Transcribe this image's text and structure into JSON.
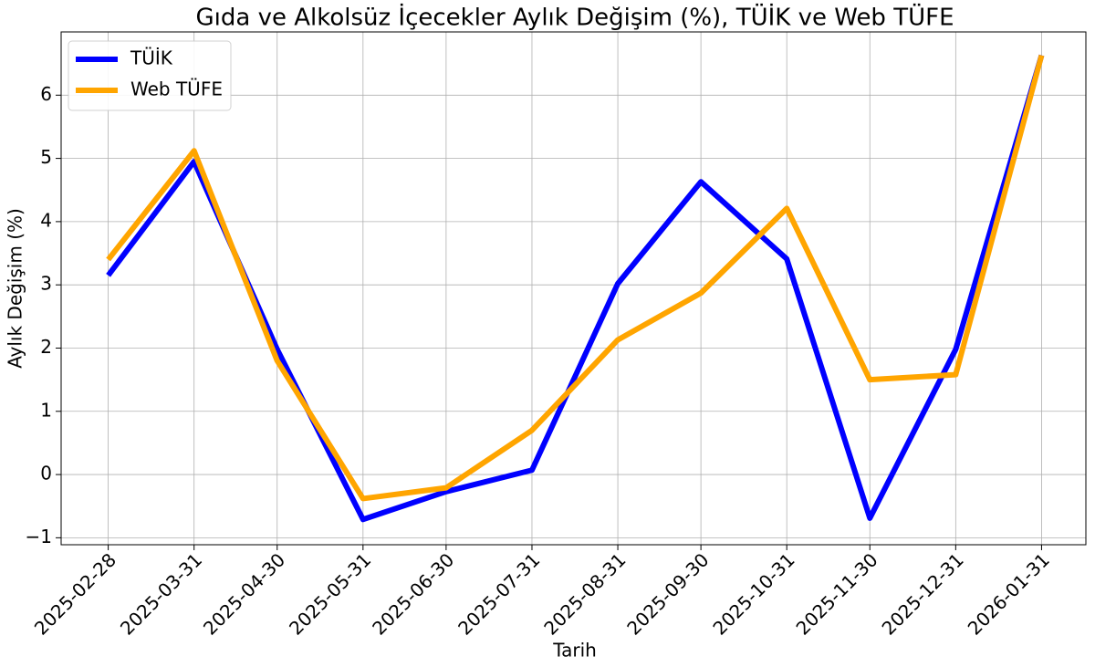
{
  "chart_data": {
    "type": "line",
    "title": "Gıda ve Alkolsüz İçecekler Aylık Değişim (%), TÜİK ve Web TÜFE",
    "xlabel": "Tarih",
    "ylabel": "Aylık Değişim (%)",
    "x": [
      "2025-02-28",
      "2025-03-31",
      "2025-04-30",
      "2025-05-31",
      "2025-06-30",
      "2025-07-31",
      "2025-08-31",
      "2025-09-30",
      "2025-10-31",
      "2025-11-30",
      "2025-12-31",
      "2026-01-31"
    ],
    "xticks": [
      "2025-02-28",
      "2025-03-31",
      "2025-04-30",
      "2025-05-31",
      "2025-06-30",
      "2025-07-31",
      "2025-08-31",
      "2025-09-30",
      "2025-10-31",
      "2025-11-30",
      "2025-12-31",
      "2026-01-31"
    ],
    "xlim": [
      "2025-02-11",
      "2026-02-16"
    ],
    "series": [
      {
        "name": "TÜİK",
        "color": "#0000ff",
        "values": [
          3.15,
          4.95,
          1.98,
          -0.71,
          -0.27,
          0.07,
          3.02,
          4.63,
          3.41,
          -0.69,
          1.98,
          6.63
        ]
      },
      {
        "name": "Web TÜFE",
        "color": "#ffa500",
        "values": [
          3.4,
          5.12,
          1.8,
          -0.38,
          -0.21,
          0.7,
          2.13,
          2.87,
          4.21,
          1.5,
          1.58,
          6.63
        ]
      }
    ],
    "ylim": [
      -1.11,
      7.0
    ],
    "yticks": [
      {
        "value": -1,
        "label": "−1"
      },
      0,
      1,
      2,
      3,
      4,
      5,
      6
    ],
    "grid": true,
    "legend": "upper-left"
  }
}
